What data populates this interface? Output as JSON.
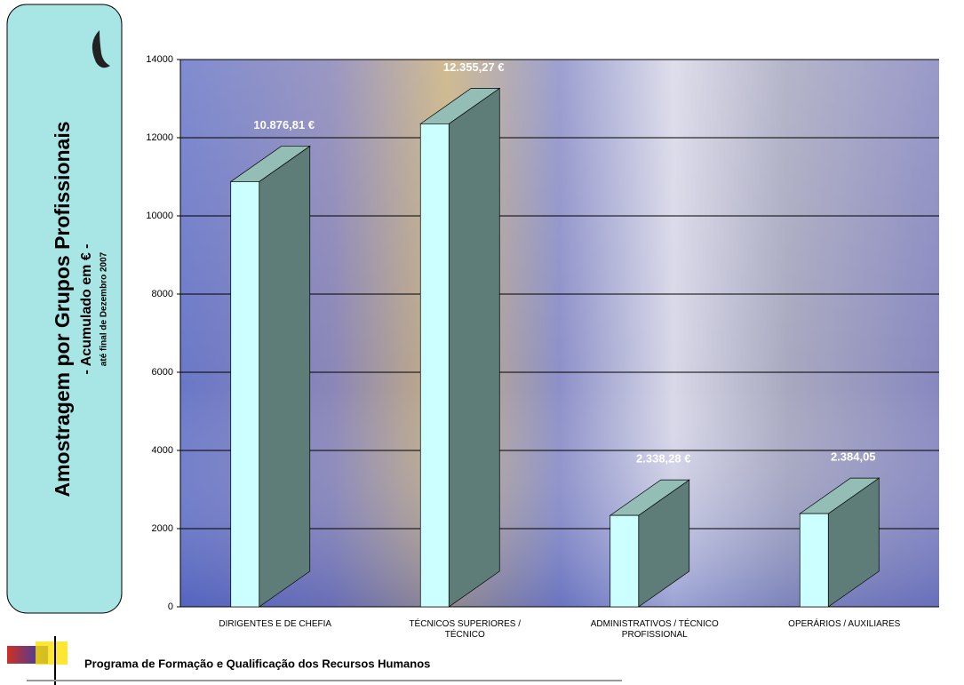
{
  "chart_data": {
    "type": "bar3d",
    "title": "Amostragem por Grupos Profissionais",
    "subtitle": "- Acumulado em € -",
    "annotation": "até final de Dezembro 2007",
    "categories": [
      "DIRIGENTES E DE CHEFIA",
      "TÉCNICOS SUPERIORES / TÉCNICO",
      "ADMINISTRATIVOS / TÉCNICO PROFISSIONAL",
      "OPERÁRIOS / AUXILIARES"
    ],
    "values": [
      10876.81,
      12355.27,
      2338.28,
      2384.05
    ],
    "value_labels": [
      "10.876,81 €",
      "12.355,27 €",
      "2.338,28 €",
      "2.384,05"
    ],
    "color": "#ccffff",
    "side_color": "#5e7d78",
    "top_color": "#93bdb5",
    "ylim": [
      0,
      14000
    ],
    "yticks": [
      0,
      2000,
      4000,
      6000,
      8000,
      10000,
      12000,
      14000
    ],
    "grid": true
  },
  "footer": {
    "text": "Programa de Formação e Qualificação dos Recursos Humanos"
  }
}
